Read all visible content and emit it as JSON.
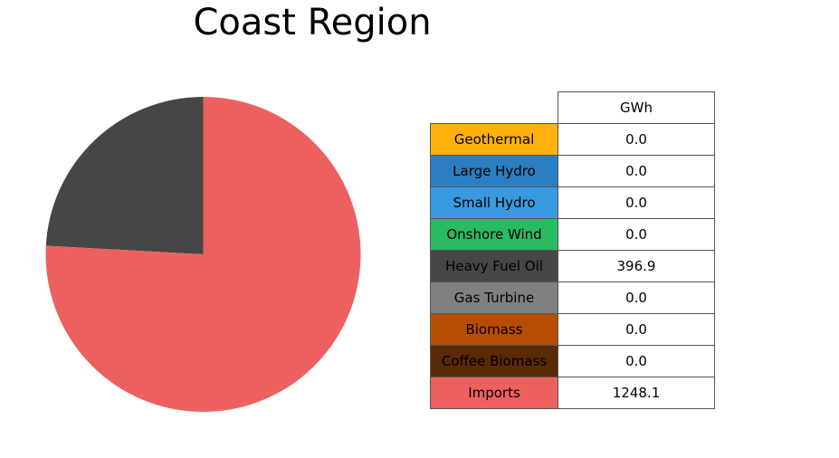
{
  "chart_data": {
    "type": "pie",
    "title": "Coast Region",
    "start_angle_deg": 90,
    "direction": "counterclockwise",
    "slices": [
      {
        "label": "Geothermal",
        "value": 0.0,
        "color": "#ffb00a"
      },
      {
        "label": "Large Hydro",
        "value": 0.0,
        "color": "#2b7ec0"
      },
      {
        "label": "Small Hydro",
        "value": 0.0,
        "color": "#3a9ae0"
      },
      {
        "label": "Onshore Wind",
        "value": 0.0,
        "color": "#2aba62"
      },
      {
        "label": "Heavy Fuel Oil",
        "value": 396.9,
        "color": "#464646"
      },
      {
        "label": "Gas Turbine",
        "value": 0.0,
        "color": "#808080"
      },
      {
        "label": "Biomass",
        "value": 0.0,
        "color": "#b84c02"
      },
      {
        "label": "Coffee Biomass",
        "value": 0.0,
        "color": "#5a2a07"
      },
      {
        "label": "Imports",
        "value": 1248.1,
        "color": "#ec6160"
      }
    ],
    "table": {
      "column_header": "GWh",
      "rows": [
        {
          "label": "Geothermal",
          "value": "0.0"
        },
        {
          "label": "Large Hydro",
          "value": "0.0"
        },
        {
          "label": "Small Hydro",
          "value": "0.0"
        },
        {
          "label": "Onshore Wind",
          "value": "0.0"
        },
        {
          "label": "Heavy Fuel Oil",
          "value": "396.9"
        },
        {
          "label": "Gas Turbine",
          "value": "0.0"
        },
        {
          "label": "Biomass",
          "value": "0.0"
        },
        {
          "label": "Coffee Biomass",
          "value": "0.0"
        },
        {
          "label": "Imports",
          "value": "1248.1"
        }
      ]
    }
  }
}
